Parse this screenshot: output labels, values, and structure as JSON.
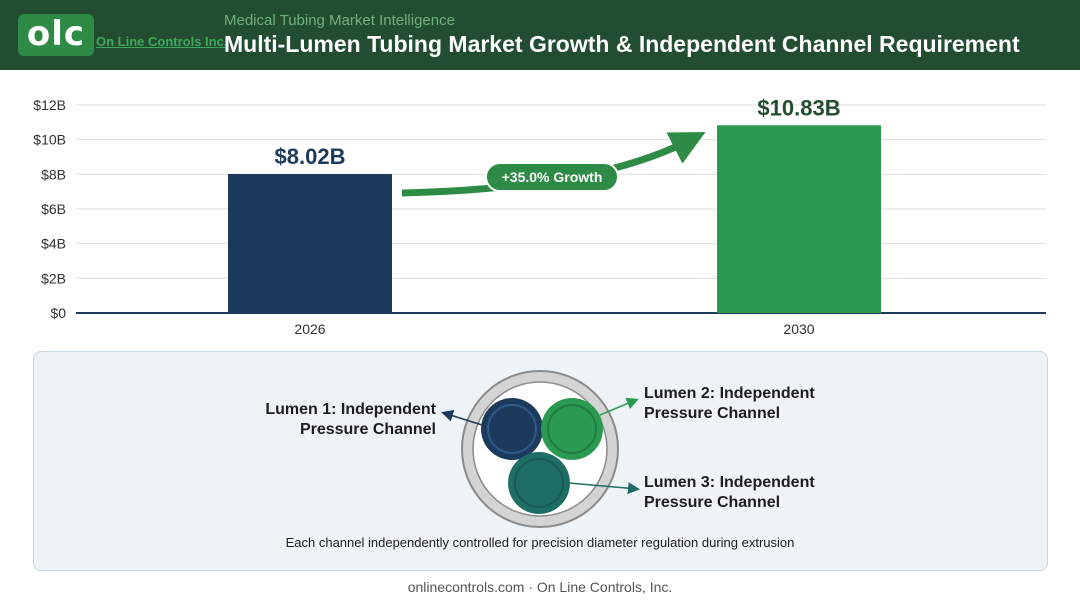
{
  "header": {
    "logo_mark": "olc",
    "logo_text": "On Line Controls Inc.",
    "eyebrow": "Medical Tubing Market Intelligence",
    "title": "Multi-Lumen Tubing Market Growth & Independent Channel Requirement"
  },
  "colors": {
    "header_bg": "#234d31",
    "bar_2026": "#1b3a5c",
    "bar_2030": "#2a9a51",
    "growth_green": "#2e8b45"
  },
  "chart_data": {
    "type": "bar",
    "categories": [
      "2026",
      "2030"
    ],
    "values": [
      8.02,
      10.83
    ],
    "value_labels": [
      "$8.02B",
      "$10.83B"
    ],
    "y_ticks": [
      "$0",
      "$2B",
      "$4B",
      "$6B",
      "$8B",
      "$10B",
      "$12B"
    ],
    "ylim": [
      0,
      12
    ],
    "grid": true,
    "annotation": "+35.0% Growth"
  },
  "diagram": {
    "lumen1": [
      "Lumen 1: Independent",
      "Pressure Channel"
    ],
    "lumen2": [
      "Lumen 2: Independent",
      "Pressure Channel"
    ],
    "lumen3": [
      "Lumen 3: Independent",
      "Pressure Channel"
    ],
    "caption": "Each channel independently controlled for precision diameter regulation during extrusion"
  },
  "footer": "onlinecontrols.com · On Line Controls, Inc."
}
